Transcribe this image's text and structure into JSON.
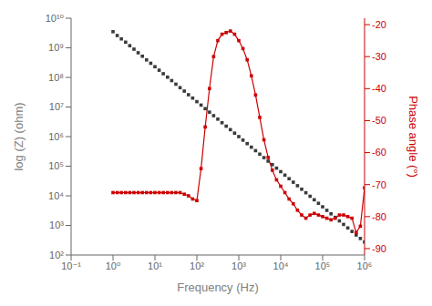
{
  "chart_data": {
    "type": "line",
    "xlabel": "Frequency (Hz)",
    "ylabel": "log (Z) (ohm)",
    "y2label": "Phase angle (°)",
    "log": true,
    "grid": false,
    "x": [
      1.0,
      1.26,
      1.58,
      2.0,
      2.51,
      3.16,
      3.98,
      5.01,
      6.31,
      7.94,
      10.0,
      12.6,
      15.8,
      20.0,
      25.1,
      31.6,
      39.8,
      50.1,
      63.1,
      79.4,
      100.0,
      126.0,
      158.0,
      200.0,
      251.0,
      316.0,
      398.0,
      501.0,
      631.0,
      794.0,
      1000.0,
      1258.0,
      1585.0,
      1995.0,
      2512.0,
      3162.0,
      3981.0,
      5012.0,
      6310.0,
      7943.0,
      10000.0,
      12589.0,
      15849.0,
      19953.0,
      25119.0,
      31623.0,
      39811.0,
      50119.0,
      63096.0,
      79433.0,
      100000.0,
      125893.0,
      158489.0,
      199526.0,
      251189.0,
      316228.0,
      398107.0,
      501187.0,
      630957.0,
      794328.0,
      1000000.0
    ],
    "xlim": [
      0.1,
      1000000.0
    ],
    "xticks": [
      {
        "value": 0.1,
        "label": "10⁻¹"
      },
      {
        "value": 1,
        "label": "10⁰"
      },
      {
        "value": 10,
        "label": "10¹"
      },
      {
        "value": 100,
        "label": "10²"
      },
      {
        "value": 1000,
        "label": "10³"
      },
      {
        "value": 10000,
        "label": "10⁴"
      },
      {
        "value": 100000,
        "label": "10⁵"
      },
      {
        "value": 1000000,
        "label": "10⁶"
      }
    ],
    "ylim": [
      100.0,
      10000000000.0
    ],
    "yticks": [
      {
        "value": 100,
        "label": "10²"
      },
      {
        "value": 1000,
        "label": "10³"
      },
      {
        "value": 10000,
        "label": "10⁴"
      },
      {
        "value": 100000,
        "label": "10⁵"
      },
      {
        "value": 1000000,
        "label": "10⁶"
      },
      {
        "value": 10000000,
        "label": "10⁷"
      },
      {
        "value": 100000000,
        "label": "10⁸"
      },
      {
        "value": 1000000000,
        "label": "10⁹"
      },
      {
        "value": 10000000000,
        "label": "10¹⁰"
      }
    ],
    "y2lim": [
      -92,
      -18
    ],
    "y2ticks": [
      -90,
      -80,
      -70,
      -60,
      -50,
      -40,
      -30,
      -20
    ],
    "series": [
      {
        "type": "scatter",
        "color": "#3a3a3a",
        "marker": "square",
        "values": [
          3500000000.0,
          2600000000.0,
          2000000000.0,
          1550000000.0,
          1180000000.0,
          900000000.0,
          680000000.0,
          520000000.0,
          390000000.0,
          300000000.0,
          230000000.0,
          175000000.0,
          133000000.0,
          102000000.0,
          78000000.0,
          59000000.0,
          45000000.0,
          34500000.0,
          26000000.0,
          20000000.0,
          15200000.0,
          11600000.0,
          8800000.0,
          6700000.0,
          5100000.0,
          3900000.0,
          2950000.0,
          2250000.0,
          1720000.0,
          1310000.0,
          1000000.0,
          760000.0,
          580000.0,
          440000.0,
          335000.0,
          255000.0,
          195000.0,
          148000.0,
          113000.0,
          86000.0,
          65500.0,
          49800.0,
          37900.0,
          28800.0,
          21900.0,
          16700.0,
          12700.0,
          9650.0,
          7340.0,
          5580.0,
          4250.0,
          3230.0,
          2460.0,
          1870.0,
          1420.0,
          1080.0,
          822.0,
          625.0,
          475.0,
          361.0,
          275.0
        ]
      },
      {
        "type": "line",
        "axis": "y2",
        "color": "#cc0000",
        "marker": "square",
        "line_style": "solid",
        "values": [
          -72.5,
          -72.5,
          -72.5,
          -72.5,
          -72.5,
          -72.5,
          -72.5,
          -72.5,
          -72.5,
          -72.5,
          -72.5,
          -72.5,
          -72.5,
          -72.5,
          -72.5,
          -72.5,
          -72.5,
          -73.0,
          -73.5,
          -74.5,
          -75.0,
          -65.0,
          -52.0,
          -40.0,
          -30.0,
          -25.0,
          -23.0,
          -22.5,
          -22.0,
          -23.0,
          -25.0,
          -27.5,
          -31.0,
          -36.0,
          -42.0,
          -49.0,
          -56.0,
          -61.5,
          -65.5,
          -68.5,
          -70.5,
          -72.5,
          -74.5,
          -76.0,
          -78.0,
          -79.5,
          -80.5,
          -79.5,
          -79.0,
          -79.5,
          -80.0,
          -80.5,
          -81.0,
          -80.5,
          -79.5,
          -79.5,
          -80.0,
          -80.5,
          -85.0,
          -83.0,
          -71.0
        ]
      }
    ]
  }
}
